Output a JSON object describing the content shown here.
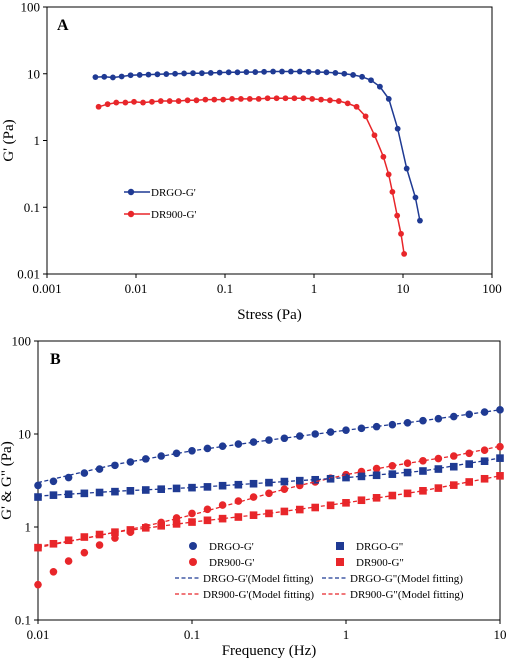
{
  "chart_data": [
    {
      "type": "line",
      "panel_label": "A",
      "xlabel": "Stress (Pa)",
      "ylabel": "G' (Pa)",
      "xscale": "log",
      "yscale": "log",
      "xlim": [
        0.001,
        100
      ],
      "ylim": [
        0.01,
        100
      ],
      "x_ticks": [
        "0.001",
        "0.01",
        "0.1",
        "1",
        "10",
        "100"
      ],
      "y_ticks": [
        "0.01",
        "0.1",
        "1",
        "10",
        "100"
      ],
      "grid": false,
      "legend_position": "center-left",
      "series": [
        {
          "name": "DRGO-G'",
          "color": "#1f3a93",
          "marker": "circle",
          "x": [
            0.0035,
            0.0044,
            0.0055,
            0.0069,
            0.0087,
            0.011,
            0.0138,
            0.0174,
            0.0219,
            0.0275,
            0.0347,
            0.0437,
            0.055,
            0.0692,
            0.0871,
            0.11,
            0.138,
            0.174,
            0.219,
            0.275,
            0.347,
            0.437,
            0.55,
            0.692,
            0.871,
            1.1,
            1.38,
            1.74,
            2.19,
            2.75,
            3.47,
            4.37,
            5.5,
            6.92,
            8.71,
            11.0,
            13.8,
            15.5
          ],
          "y": [
            8.9,
            9.0,
            8.8,
            9.1,
            9.5,
            9.6,
            9.7,
            9.8,
            9.9,
            10.0,
            10.1,
            10.2,
            10.2,
            10.3,
            10.4,
            10.5,
            10.5,
            10.6,
            10.6,
            10.7,
            10.8,
            10.8,
            10.8,
            10.8,
            10.7,
            10.6,
            10.5,
            10.3,
            10.0,
            9.6,
            9.0,
            8.0,
            6.4,
            4.2,
            1.5,
            0.38,
            0.14,
            0.063
          ]
        },
        {
          "name": "DR900-G'",
          "color": "#e8262a",
          "marker": "circle",
          "x": [
            0.0038,
            0.0048,
            0.006,
            0.0076,
            0.0095,
            0.012,
            0.0151,
            0.019,
            0.0239,
            0.0301,
            0.038,
            0.0478,
            0.0602,
            0.0758,
            0.0954,
            0.12,
            0.151,
            0.19,
            0.239,
            0.301,
            0.38,
            0.478,
            0.602,
            0.758,
            0.954,
            1.2,
            1.51,
            1.9,
            2.39,
            3.01,
            3.8,
            4.78,
            6.02,
            6.9,
            7.6,
            8.6,
            9.5,
            10.3
          ],
          "y": [
            3.2,
            3.5,
            3.7,
            3.7,
            3.8,
            3.7,
            3.8,
            3.9,
            3.9,
            3.9,
            4.0,
            4.0,
            4.1,
            4.1,
            4.1,
            4.2,
            4.2,
            4.2,
            4.2,
            4.3,
            4.3,
            4.3,
            4.3,
            4.3,
            4.2,
            4.1,
            4.0,
            3.9,
            3.6,
            3.2,
            2.3,
            1.2,
            0.57,
            0.31,
            0.17,
            0.075,
            0.04,
            0.02
          ]
        }
      ]
    },
    {
      "type": "scatter",
      "panel_label": "B",
      "xlabel": "Frequency (Hz)",
      "ylabel": "G' & G\" (Pa)",
      "xscale": "log",
      "yscale": "log",
      "xlim": [
        0.01,
        10
      ],
      "ylim": [
        0.1,
        100
      ],
      "x_ticks": [
        "0.01",
        "0.1",
        "1",
        "10"
      ],
      "y_ticks": [
        "0.1",
        "1",
        "10",
        "100"
      ],
      "grid": false,
      "legend_position": "bottom-center",
      "series": [
        {
          "name": "DRGO-G'",
          "color": "#1f3a93",
          "marker": "circle",
          "x": [
            0.01,
            0.0126,
            0.0158,
            0.02,
            0.0251,
            0.0316,
            0.0398,
            0.0501,
            0.0631,
            0.0794,
            0.1,
            0.126,
            0.158,
            0.2,
            0.251,
            0.316,
            0.398,
            0.501,
            0.631,
            0.794,
            1.0,
            1.26,
            1.58,
            2.0,
            2.51,
            3.16,
            3.98,
            5.01,
            6.31,
            7.94,
            10.0
          ],
          "y": [
            2.8,
            3.1,
            3.4,
            3.8,
            4.2,
            4.6,
            5.0,
            5.4,
            5.8,
            6.2,
            6.6,
            7.0,
            7.4,
            7.8,
            8.2,
            8.6,
            9.0,
            9.5,
            10.0,
            10.5,
            11.0,
            11.5,
            12.0,
            12.6,
            13.2,
            13.9,
            14.6,
            15.4,
            16.3,
            17.2,
            18.2
          ]
        },
        {
          "name": "DR900-G'",
          "color": "#e8262a",
          "marker": "circle",
          "x": [
            0.01,
            0.0126,
            0.0158,
            0.02,
            0.0251,
            0.0316,
            0.0398,
            0.0501,
            0.0631,
            0.0794,
            0.1,
            0.126,
            0.158,
            0.2,
            0.251,
            0.316,
            0.398,
            0.501,
            0.631,
            0.794,
            1.0,
            1.26,
            1.58,
            2.0,
            2.51,
            3.16,
            3.98,
            5.01,
            6.31,
            7.94,
            10.0
          ],
          "y": [
            0.24,
            0.33,
            0.43,
            0.53,
            0.64,
            0.76,
            0.88,
            1.0,
            1.12,
            1.25,
            1.4,
            1.55,
            1.72,
            1.9,
            2.1,
            2.3,
            2.55,
            2.8,
            3.05,
            3.35,
            3.65,
            3.95,
            4.25,
            4.55,
            4.85,
            5.15,
            5.45,
            5.8,
            6.2,
            6.7,
            7.3
          ]
        },
        {
          "name": "DRGO-G\"",
          "color": "#1f3a93",
          "marker": "square",
          "x": [
            0.01,
            0.0126,
            0.0158,
            0.02,
            0.0251,
            0.0316,
            0.0398,
            0.0501,
            0.0631,
            0.0794,
            0.1,
            0.126,
            0.158,
            0.2,
            0.251,
            0.316,
            0.398,
            0.501,
            0.631,
            0.794,
            1.0,
            1.26,
            1.58,
            2.0,
            2.51,
            3.16,
            3.98,
            5.01,
            6.31,
            7.94,
            10.0
          ],
          "y": [
            2.1,
            2.2,
            2.25,
            2.3,
            2.35,
            2.4,
            2.45,
            2.5,
            2.55,
            2.6,
            2.65,
            2.7,
            2.78,
            2.85,
            2.92,
            3.0,
            3.08,
            3.15,
            3.22,
            3.3,
            3.4,
            3.5,
            3.6,
            3.7,
            3.85,
            4.0,
            4.2,
            4.45,
            4.75,
            5.1,
            5.5
          ]
        },
        {
          "name": "DR900-G\"",
          "color": "#e8262a",
          "marker": "square",
          "x": [
            0.01,
            0.0126,
            0.0158,
            0.02,
            0.0251,
            0.0316,
            0.0398,
            0.0501,
            0.0631,
            0.0794,
            0.1,
            0.126,
            0.158,
            0.2,
            0.251,
            0.316,
            0.398,
            0.501,
            0.631,
            0.794,
            1.0,
            1.26,
            1.58,
            2.0,
            2.51,
            3.16,
            3.98,
            5.01,
            6.31,
            7.94,
            10.0
          ],
          "y": [
            0.6,
            0.66,
            0.72,
            0.78,
            0.83,
            0.88,
            0.93,
            0.98,
            1.03,
            1.08,
            1.13,
            1.18,
            1.23,
            1.28,
            1.34,
            1.4,
            1.47,
            1.54,
            1.62,
            1.71,
            1.82,
            1.94,
            2.06,
            2.18,
            2.3,
            2.45,
            2.62,
            2.82,
            3.05,
            3.3,
            3.55
          ]
        },
        {
          "name": "DRGO-G'(Model fitting)",
          "color": "#1f3a93",
          "line": "dashed",
          "x": [
            0.01,
            0.0316,
            0.1,
            0.316,
            1.0,
            3.16,
            10.0
          ],
          "y": [
            3.0,
            4.7,
            6.6,
            8.6,
            11.0,
            13.9,
            18.2
          ]
        },
        {
          "name": "DR900-G'(Model fitting)",
          "color": "#e8262a",
          "line": "dashed",
          "x": [
            0.01,
            0.02,
            0.0316,
            0.05,
            0.1,
            0.2,
            0.316,
            0.5,
            1.0,
            2.0,
            3.16,
            5.0,
            10.0
          ],
          "y": [
            0.62,
            0.75,
            0.88,
            1.02,
            1.35,
            1.85,
            2.3,
            2.8,
            3.65,
            4.55,
            5.15,
            5.8,
            7.4
          ]
        },
        {
          "name": "DRGO-G\"(Model fitting)",
          "color": "#1f3a93",
          "line": "dashed",
          "x": [
            0.01,
            0.0316,
            0.1,
            0.316,
            1.0,
            3.16,
            10.0
          ],
          "y": [
            2.15,
            2.42,
            2.65,
            3.0,
            3.4,
            4.0,
            5.5
          ]
        },
        {
          "name": "DR900-G\"(Model fitting)",
          "color": "#e8262a",
          "line": "dashed",
          "x": [
            0.01,
            0.0316,
            0.1,
            0.316,
            1.0,
            3.16,
            10.0
          ],
          "y": [
            0.6,
            0.88,
            1.13,
            1.4,
            1.82,
            2.45,
            3.55
          ]
        }
      ]
    }
  ]
}
